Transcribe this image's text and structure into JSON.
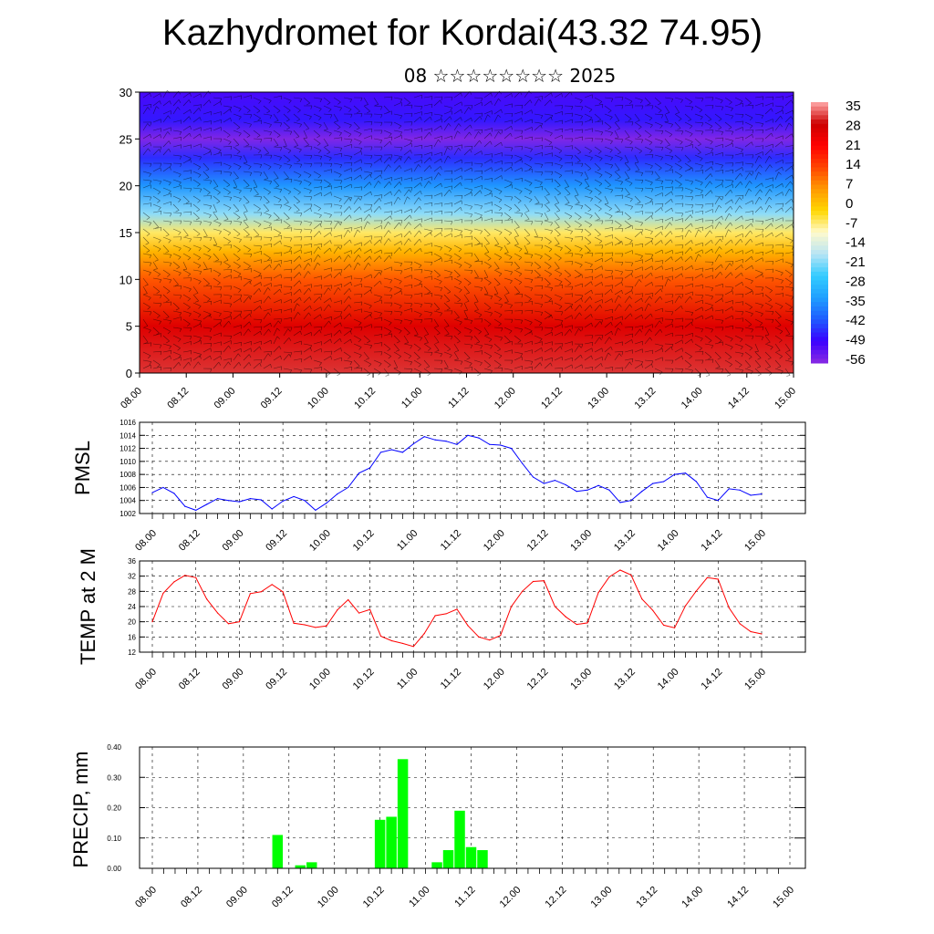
{
  "header": {
    "title": "Kazhydromet for Kordai(43.32 74.95)",
    "subtitle": "08 ☆☆☆☆☆☆☆☆ 2025"
  },
  "colors": {
    "pmsl_line": "#0000ff",
    "temp_line": "#ff0000",
    "precip_bar": "#00ff00",
    "colormap": [
      "#8a2be2",
      "#3a00ff",
      "#1e5bff",
      "#1fa0ff",
      "#33ccff",
      "#b7e4f5",
      "#fffacd",
      "#ffd700",
      "#ff9900",
      "#ff4500",
      "#ff0000",
      "#cc0000",
      "#ffaaaa"
    ]
  },
  "chart_data": [
    {
      "type": "heatmap",
      "x_tick_labels": [
        "08.00",
        "08.12",
        "09.00",
        "09.12",
        "10.00",
        "10.12",
        "11.00",
        "11.12",
        "12.00",
        "12.12",
        "13.00",
        "13.12",
        "14.00",
        "14.12",
        "15.00"
      ],
      "ylim": [
        0,
        30
      ],
      "y_ticks": [
        0,
        5,
        10,
        15,
        20,
        25,
        30
      ],
      "colorbar_labels": [
        "35",
        "28",
        "21",
        "14",
        "7",
        "0",
        "-7",
        "-14",
        "-21",
        "-28",
        "-35",
        "-42",
        "-49",
        "-56"
      ],
      "colorbar_range": [
        -63,
        42
      ],
      "field_description": "temperature with wind barbs vs height",
      "profile": [
        {
          "y": 0,
          "v": 36
        },
        {
          "y": 5,
          "v": 30
        },
        {
          "y": 10,
          "v": 14
        },
        {
          "y": 13,
          "v": 3
        },
        {
          "y": 15,
          "v": -6
        },
        {
          "y": 17,
          "v": -22
        },
        {
          "y": 20,
          "v": -38
        },
        {
          "y": 23,
          "v": -50
        },
        {
          "y": 25,
          "v": -62
        },
        {
          "y": 27,
          "v": -52
        },
        {
          "y": 30,
          "v": -56
        }
      ]
    },
    {
      "type": "line",
      "ylabel": "PMSL",
      "ylim": [
        1002,
        1016
      ],
      "y_ticks": [
        1002,
        1004,
        1006,
        1008,
        1010,
        1012,
        1014,
        1016
      ],
      "x_tick_labels": [
        "08.00",
        "08.12",
        "09.00",
        "09.12",
        "10.00",
        "10.12",
        "11.00",
        "11.12",
        "12.00",
        "12.12",
        "13.00",
        "13.12",
        "14.00",
        "14.12",
        "15.00"
      ],
      "x_step_hours": 3,
      "series": [
        {
          "values": [
            1005.2,
            1006.0,
            1005.1,
            1003.1,
            1002.5,
            1003.4,
            1004.3,
            1004.0,
            1003.8,
            1004.3,
            1004.1,
            1002.7,
            1003.9,
            1004.6,
            1004.0,
            1002.5,
            1003.6,
            1005.0,
            1006.0,
            1008.2,
            1009.0,
            1011.4,
            1011.8,
            1011.4,
            1012.7,
            1013.8,
            1013.3,
            1013.1,
            1012.6,
            1014.0,
            1013.6,
            1012.6,
            1012.5,
            1012.0,
            1009.7,
            1007.6,
            1006.6,
            1007.1,
            1006.4,
            1005.4,
            1005.6,
            1006.3,
            1005.6,
            1003.7,
            1004.0,
            1005.4,
            1006.6,
            1006.9,
            1008.0,
            1008.2,
            1006.9,
            1004.5,
            1004.0,
            1005.8,
            1005.6,
            1004.8,
            1005.0
          ]
        }
      ]
    },
    {
      "type": "line",
      "ylabel": "TEMP at 2 M",
      "ylim": [
        12,
        36
      ],
      "y_ticks": [
        12,
        16,
        20,
        24,
        28,
        32,
        36
      ],
      "x_tick_labels": [
        "08.00",
        "08.12",
        "09.00",
        "09.12",
        "10.00",
        "10.12",
        "11.00",
        "11.12",
        "12.00",
        "12.12",
        "13.00",
        "13.12",
        "14.00",
        "14.12",
        "15.00"
      ],
      "x_step_hours": 3,
      "series": [
        {
          "values": [
            20.0,
            27.5,
            30.5,
            32.2,
            31.6,
            26.0,
            22.3,
            19.5,
            20.0,
            27.4,
            27.9,
            29.8,
            27.9,
            19.6,
            19.2,
            18.5,
            18.9,
            23.1,
            25.8,
            22.3,
            23.2,
            16.2,
            15.0,
            14.3,
            13.5,
            16.9,
            21.6,
            22.1,
            23.3,
            19.0,
            16.0,
            15.2,
            16.4,
            24.0,
            28.0,
            30.6,
            30.8,
            24.0,
            21.3,
            19.3,
            19.7,
            27.7,
            31.8,
            33.6,
            32.3,
            26.0,
            23.0,
            19.1,
            18.4,
            24.2,
            28.1,
            31.6,
            31.2,
            23.7,
            19.5,
            17.4,
            16.8
          ]
        }
      ]
    },
    {
      "type": "bar",
      "ylabel": "PRECIP, mm",
      "ylim": [
        0,
        0.4
      ],
      "y_tick_labels": [
        "0.00",
        "0.10",
        "0.20",
        "0.30",
        "0.40"
      ],
      "x_tick_labels": [
        "08.00",
        "08.12",
        "09.00",
        "09.12",
        "10.00",
        "10.12",
        "11.00",
        "11.12",
        "12.00",
        "12.12",
        "13.00",
        "13.12",
        "14.00",
        "14.12",
        "15.00"
      ],
      "x_step_hours": 3,
      "values": [
        0,
        0,
        0,
        0,
        0,
        0,
        0,
        0,
        0,
        0,
        0,
        0.11,
        0,
        0.01,
        0.02,
        0,
        0,
        0,
        0,
        0,
        0.16,
        0.17,
        0.36,
        0,
        0,
        0.02,
        0.06,
        0.19,
        0.07,
        0.06,
        0,
        0,
        0,
        0,
        0,
        0,
        0,
        0,
        0,
        0,
        0,
        0,
        0,
        0,
        0,
        0,
        0,
        0,
        0,
        0,
        0,
        0,
        0,
        0,
        0,
        0
      ]
    }
  ]
}
